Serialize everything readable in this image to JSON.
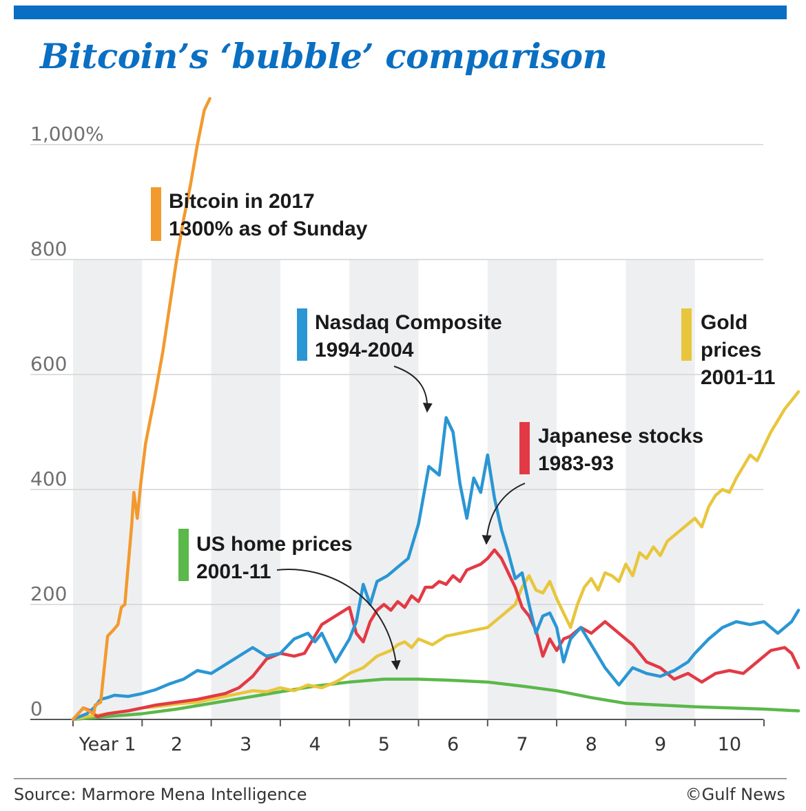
{
  "page": {
    "title": "Bitcoin’s ‘bubble’ comparison",
    "source": "Source: Marmore Mena Intelligence",
    "credit": "©Gulf News"
  },
  "colors": {
    "brand": "#0a6fc2",
    "bitcoin": "#f29a2e",
    "nasdaq": "#2a96d4",
    "japan": "#e23a45",
    "gold": "#e8c63c",
    "home": "#5bb84a",
    "band": "#eeeff1",
    "grid": "#d4d4d4"
  },
  "chart_data": {
    "type": "line",
    "title": "Bitcoin’s ‘bubble’ comparison",
    "xlabel": "",
    "ylabel": "",
    "xlim": [
      0,
      10.5
    ],
    "ylim": [
      0,
      1000
    ],
    "grid": true,
    "y_ticks": [
      0,
      200,
      400,
      600,
      800,
      1000
    ],
    "y_tick_labels": [
      "0",
      "200",
      "400",
      "600",
      "800",
      "1,000%"
    ],
    "x_tick_labels": [
      "Year 1",
      "2",
      "3",
      "4",
      "5",
      "6",
      "7",
      "8",
      "9",
      "10"
    ],
    "series": [
      {
        "name": "Bitcoin in 2017",
        "key": "bitcoin",
        "label_line2": "1300% as of Sunday",
        "x": [
          0,
          0.15,
          0.3,
          0.32,
          0.4,
          0.5,
          0.58,
          0.65,
          0.7,
          0.75,
          0.85,
          0.88,
          0.93,
          0.98,
          1.05,
          1.18,
          1.3,
          1.4,
          1.5,
          1.6,
          1.7,
          1.8,
          1.9,
          1.98
        ],
        "y": [
          0,
          20,
          10,
          25,
          30,
          145,
          155,
          165,
          195,
          200,
          340,
          395,
          350,
          410,
          480,
          560,
          640,
          720,
          800,
          870,
          930,
          1000,
          1060,
          1080
        ]
      },
      {
        "name": "Nasdaq Composite",
        "key": "nasdaq",
        "label_line2": "1994-2004",
        "x": [
          0,
          0.1,
          0.2,
          0.3,
          0.4,
          0.5,
          0.6,
          0.8,
          1.0,
          1.2,
          1.4,
          1.6,
          1.8,
          2.0,
          2.2,
          2.4,
          2.6,
          2.8,
          3.0,
          3.2,
          3.4,
          3.5,
          3.6,
          3.8,
          4.0,
          4.1,
          4.2,
          4.3,
          4.4,
          4.55,
          4.7,
          4.85,
          5.0,
          5.15,
          5.3,
          5.4,
          5.5,
          5.6,
          5.7,
          5.8,
          5.9,
          6.0,
          6.1,
          6.2,
          6.3,
          6.4,
          6.5,
          6.6,
          6.7,
          6.8,
          6.9,
          7.0,
          7.1,
          7.2,
          7.35,
          7.5,
          7.7,
          7.9,
          8.1,
          8.3,
          8.5,
          8.7,
          8.9,
          9.0,
          9.2,
          9.4,
          9.6,
          9.8,
          10.0,
          10.2,
          10.4,
          10.5
        ],
        "y": [
          0,
          5,
          10,
          20,
          35,
          38,
          42,
          40,
          45,
          52,
          62,
          70,
          85,
          80,
          95,
          110,
          125,
          110,
          115,
          140,
          150,
          135,
          150,
          100,
          140,
          170,
          235,
          200,
          240,
          250,
          265,
          280,
          340,
          440,
          425,
          525,
          500,
          410,
          350,
          420,
          395,
          460,
          385,
          330,
          290,
          245,
          255,
          200,
          150,
          180,
          185,
          160,
          100,
          140,
          160,
          130,
          90,
          60,
          90,
          80,
          75,
          85,
          100,
          115,
          140,
          160,
          170,
          165,
          170,
          150,
          170,
          190
        ]
      },
      {
        "name": "Japanese stocks",
        "key": "japan",
        "label_line2": "1983-93",
        "x": [
          0,
          0.15,
          0.25,
          0.35,
          0.5,
          0.8,
          1.0,
          1.2,
          1.5,
          1.8,
          2.0,
          2.2,
          2.4,
          2.6,
          2.8,
          3.0,
          3.2,
          3.35,
          3.5,
          3.6,
          3.8,
          4.0,
          4.1,
          4.2,
          4.3,
          4.4,
          4.5,
          4.6,
          4.7,
          4.8,
          4.9,
          5.0,
          5.1,
          5.2,
          5.3,
          5.4,
          5.5,
          5.6,
          5.7,
          5.8,
          5.9,
          6.0,
          6.1,
          6.2,
          6.3,
          6.4,
          6.5,
          6.6,
          6.7,
          6.8,
          6.9,
          7.0,
          7.1,
          7.2,
          7.35,
          7.5,
          7.7,
          7.9,
          8.1,
          8.3,
          8.5,
          8.7,
          8.9,
          9.1,
          9.3,
          9.5,
          9.7,
          9.9,
          10.1,
          10.3,
          10.4,
          10.5
        ],
        "y": [
          0,
          20,
          15,
          5,
          10,
          15,
          20,
          25,
          30,
          35,
          40,
          45,
          55,
          75,
          105,
          115,
          110,
          115,
          145,
          165,
          180,
          195,
          150,
          135,
          170,
          190,
          200,
          190,
          205,
          195,
          215,
          205,
          230,
          230,
          240,
          235,
          250,
          240,
          260,
          265,
          270,
          280,
          295,
          280,
          255,
          230,
          195,
          180,
          155,
          110,
          140,
          120,
          140,
          145,
          160,
          150,
          170,
          150,
          130,
          100,
          90,
          70,
          80,
          65,
          80,
          85,
          80,
          100,
          120,
          125,
          115,
          90
        ]
      },
      {
        "name": "Gold",
        "key": "gold",
        "label_line2": "prices",
        "label_line3": "2001-11",
        "x": [
          0,
          0.2,
          0.4,
          0.6,
          0.8,
          1.0,
          1.2,
          1.4,
          1.6,
          1.8,
          2.0,
          2.2,
          2.4,
          2.6,
          2.8,
          3.0,
          3.2,
          3.4,
          3.6,
          3.8,
          3.9,
          4.0,
          4.2,
          4.4,
          4.6,
          4.7,
          4.8,
          4.9,
          5.0,
          5.2,
          5.4,
          5.6,
          5.8,
          6.0,
          6.2,
          6.4,
          6.5,
          6.6,
          6.7,
          6.8,
          6.9,
          7.0,
          7.1,
          7.2,
          7.3,
          7.4,
          7.5,
          7.6,
          7.7,
          7.8,
          7.9,
          8.0,
          8.1,
          8.2,
          8.3,
          8.4,
          8.5,
          8.6,
          8.7,
          8.8,
          8.9,
          9.0,
          9.1,
          9.2,
          9.3,
          9.4,
          9.5,
          9.6,
          9.7,
          9.8,
          9.9,
          10.0,
          10.1,
          10.2,
          10.3,
          10.4,
          10.5
        ],
        "y": [
          0,
          5,
          8,
          12,
          15,
          20,
          22,
          25,
          28,
          30,
          35,
          40,
          45,
          50,
          48,
          55,
          50,
          60,
          55,
          65,
          72,
          80,
          90,
          110,
          120,
          130,
          135,
          125,
          140,
          130,
          145,
          150,
          155,
          160,
          180,
          200,
          230,
          250,
          225,
          220,
          240,
          210,
          185,
          160,
          200,
          230,
          245,
          225,
          255,
          250,
          240,
          270,
          250,
          290,
          280,
          300,
          285,
          310,
          320,
          330,
          340,
          350,
          335,
          370,
          390,
          400,
          395,
          420,
          440,
          460,
          450,
          475,
          500,
          520,
          540,
          555,
          570
        ]
      },
      {
        "name": "US home prices",
        "key": "home",
        "label_line2": "2001-11",
        "x": [
          0,
          0.5,
          1.0,
          1.5,
          2.0,
          2.5,
          3.0,
          3.5,
          4.0,
          4.5,
          5.0,
          5.5,
          6.0,
          6.5,
          7.0,
          7.5,
          8.0,
          8.5,
          9.0,
          9.5,
          10.0,
          10.5
        ],
        "y": [
          0,
          5,
          10,
          18,
          28,
          38,
          48,
          58,
          65,
          70,
          70,
          68,
          65,
          58,
          50,
          38,
          28,
          25,
          22,
          20,
          18,
          15
        ]
      }
    ]
  }
}
